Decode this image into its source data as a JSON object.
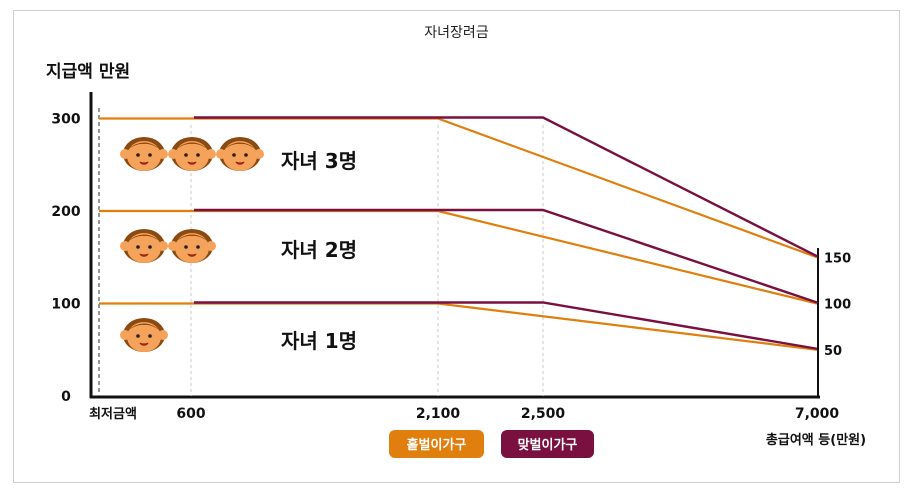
{
  "chart_data": {
    "type": "line",
    "title": "자녀장려금",
    "ylabel": "지급액 만원",
    "xlabel": "총급여액 등(만원)",
    "ylim": [
      0,
      330
    ],
    "x_ticks": [
      {
        "value": 0,
        "label": "최저금액"
      },
      {
        "value": 600,
        "label": "600"
      },
      {
        "value": 2100,
        "label": "2,100"
      },
      {
        "value": 2500,
        "label": "2,500"
      },
      {
        "value": 7000,
        "label": "7,000"
      }
    ],
    "y_ticks": [
      0,
      100,
      200,
      300
    ],
    "right_labels": [
      "150",
      "100",
      "50"
    ],
    "groups": [
      {
        "label": "자녀 3명",
        "faces": 3,
        "max": 300,
        "end": 150,
        "single_y": 300,
        "dual_y": 300
      },
      {
        "label": "자녀 2명",
        "faces": 2,
        "max": 200,
        "end": 100,
        "single_y": 200,
        "dual_y": 200
      },
      {
        "label": "자녀 1명",
        "faces": 1,
        "max": 100,
        "end": 50,
        "single_y": 100,
        "dual_y": 100
      }
    ],
    "series": [
      {
        "name": "홑벌이가구",
        "color": "#e07e0e",
        "points_3": [
          [
            0,
            300
          ],
          [
            2100,
            300
          ],
          [
            7000,
            150
          ]
        ],
        "points_2": [
          [
            0,
            200
          ],
          [
            2100,
            200
          ],
          [
            7000,
            100
          ]
        ],
        "points_1": [
          [
            0,
            100
          ],
          [
            2100,
            100
          ],
          [
            7000,
            50
          ]
        ]
      },
      {
        "name": "맞벌이가구",
        "color": "#7a1040",
        "points_3": [
          [
            600,
            300
          ],
          [
            2500,
            300
          ],
          [
            7000,
            150
          ]
        ],
        "points_2": [
          [
            600,
            200
          ],
          [
            2500,
            200
          ],
          [
            7000,
            100
          ]
        ],
        "points_1": [
          [
            600,
            100
          ],
          [
            2500,
            100
          ],
          [
            7000,
            50
          ]
        ]
      }
    ],
    "grid": false,
    "legend_position": "bottom-center"
  },
  "colors": {
    "single": "#e07e0e",
    "dual": "#7a1040",
    "face_skin": "#f5a25b",
    "face_hair": "#8a4a12"
  }
}
